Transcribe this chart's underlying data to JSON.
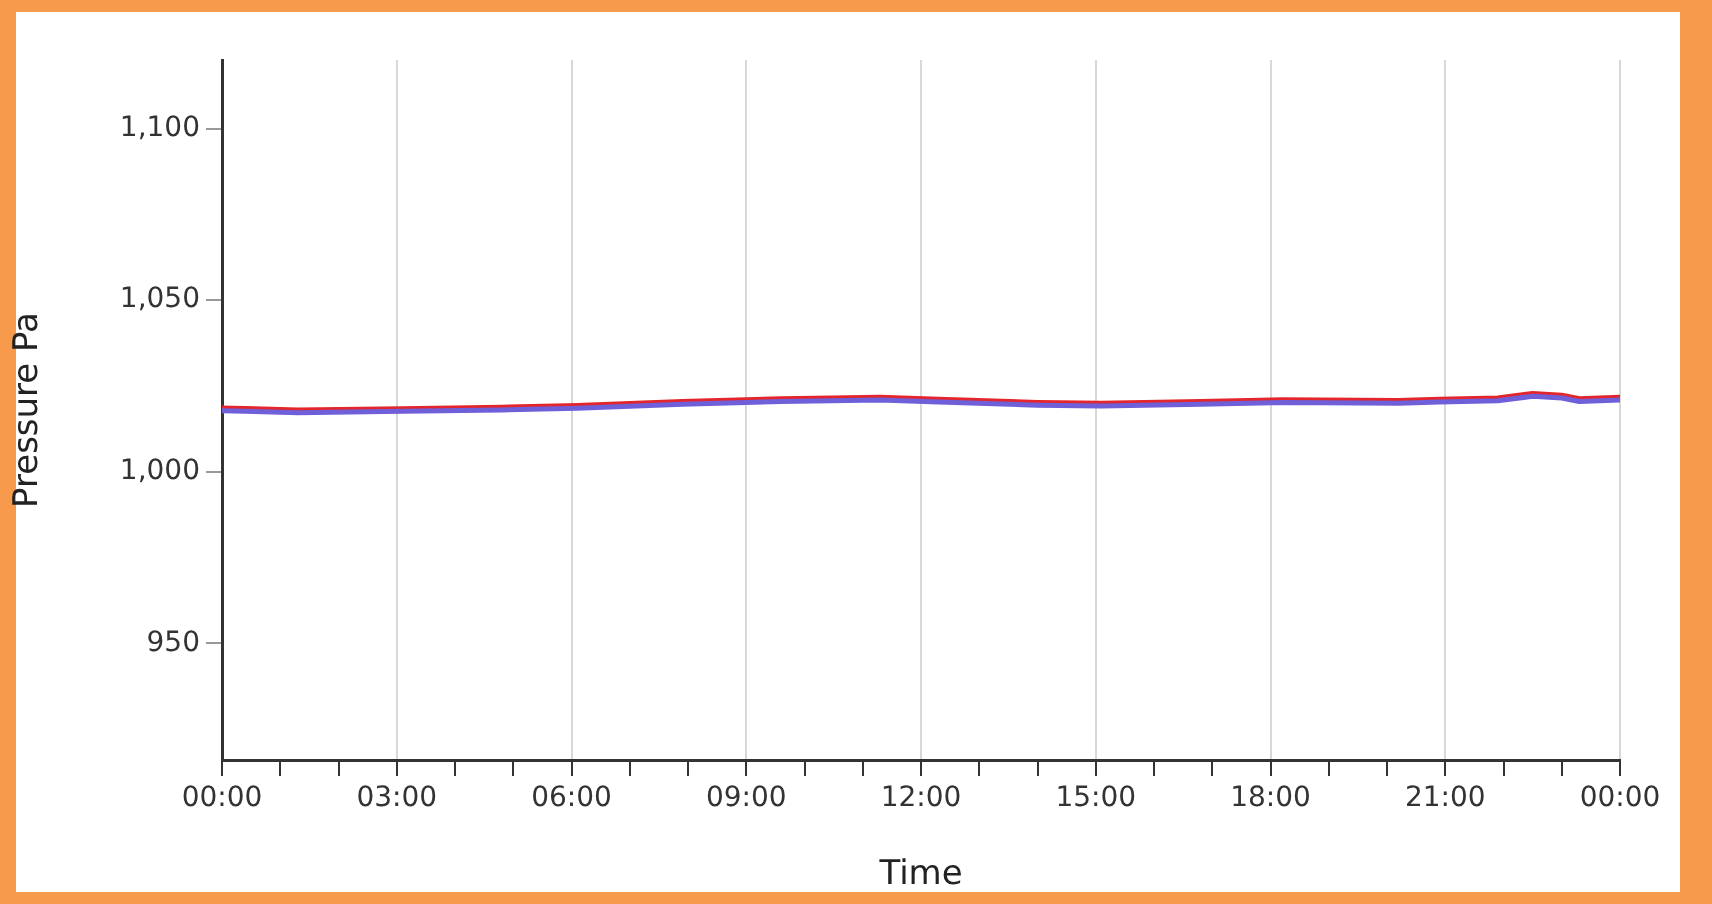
{
  "chart_data": {
    "type": "line",
    "xlabel": "Time",
    "ylabel": "Pressure Pa",
    "x": [
      0,
      1.3,
      3.1,
      4.8,
      6.1,
      7.9,
      9.6,
      11.3,
      12.3,
      14.0,
      15.1,
      16.8,
      18.2,
      20.2,
      20.9,
      21.9,
      22.5,
      23.0,
      23.3,
      24
    ],
    "series": [
      {
        "color": "#6f5fd8",
        "values": [
          1017.8,
          1017.2,
          1017.6,
          1018.0,
          1018.5,
          1019.7,
          1020.5,
          1020.9,
          1020.3,
          1019.4,
          1019.2,
          1019.7,
          1020.2,
          1020.0,
          1020.3,
          1020.7,
          1022.0,
          1021.5,
          1020.5,
          1020.9
        ]
      },
      {
        "color": "#e3262b",
        "values": [
          1018.6,
          1018.0,
          1018.4,
          1018.8,
          1019.3,
          1020.5,
          1021.3,
          1021.7,
          1021.1,
          1020.2,
          1020.0,
          1020.5,
          1021.0,
          1020.8,
          1021.1,
          1021.5,
          1022.8,
          1022.3,
          1021.3,
          1021.7
        ]
      }
    ],
    "xlim": [
      0,
      24
    ],
    "xticks": [
      {
        "value": 0,
        "label": "00:00"
      },
      {
        "value": 1,
        "label": null
      },
      {
        "value": 2,
        "label": null
      },
      {
        "value": 3,
        "label": "03:00"
      },
      {
        "value": 4,
        "label": null
      },
      {
        "value": 5,
        "label": null
      },
      {
        "value": 6,
        "label": "06:00"
      },
      {
        "value": 7,
        "label": null
      },
      {
        "value": 8,
        "label": null
      },
      {
        "value": 9,
        "label": "09:00"
      },
      {
        "value": 10,
        "label": null
      },
      {
        "value": 11,
        "label": null
      },
      {
        "value": 12,
        "label": "12:00"
      },
      {
        "value": 13,
        "label": null
      },
      {
        "value": 14,
        "label": null
      },
      {
        "value": 15,
        "label": "15:00"
      },
      {
        "value": 16,
        "label": null
      },
      {
        "value": 17,
        "label": null
      },
      {
        "value": 18,
        "label": "18:00"
      },
      {
        "value": 19,
        "label": null
      },
      {
        "value": 20,
        "label": null
      },
      {
        "value": 21,
        "label": "21:00"
      },
      {
        "value": 22,
        "label": null
      },
      {
        "value": 23,
        "label": null
      },
      {
        "value": 24,
        "label": "00:00"
      }
    ],
    "ylim": [
      916,
      1120
    ],
    "yticks": [
      {
        "value": 950,
        "label": "950"
      },
      {
        "value": 1000,
        "label": "1,000"
      },
      {
        "value": 1050,
        "label": "1,050"
      },
      {
        "value": 1100,
        "label": "1,100"
      }
    ],
    "grid": "x",
    "legend": false,
    "marker": "none",
    "line_style": "solid"
  }
}
